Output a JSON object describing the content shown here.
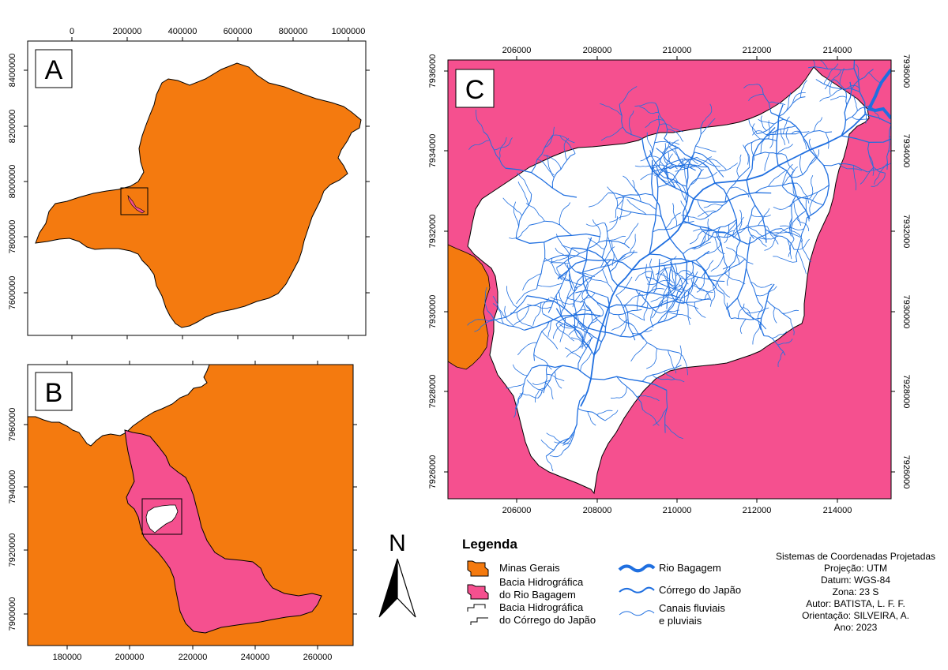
{
  "colors": {
    "minas_gerais": "#F47A0F",
    "bacia_bagagem": "#F5508F",
    "rio": "#1F6FE0",
    "white": "#FFFFFF"
  },
  "panels": {
    "a": {
      "letter": "A",
      "x_ticks": [
        "0",
        "200000",
        "400000",
        "600000",
        "800000",
        "1000000"
      ],
      "y_ticks": [
        "8400000",
        "8200000",
        "8000000",
        "7800000",
        "7600000"
      ]
    },
    "b": {
      "letter": "B",
      "x_ticks": [
        "180000",
        "200000",
        "220000",
        "240000",
        "260000"
      ],
      "y_ticks": [
        "7960000",
        "7940000",
        "7920000",
        "7900000"
      ]
    },
    "c": {
      "letter": "C",
      "x_ticks": [
        "206000",
        "208000",
        "210000",
        "212000",
        "214000"
      ],
      "y_ticks": [
        "7936000",
        "7934000",
        "7932000",
        "7930000",
        "7928000",
        "7926000"
      ]
    }
  },
  "north_arrow": {
    "letter": "N",
    "icon": "north-arrow-icon"
  },
  "legend": {
    "title": "Legenda",
    "items": [
      {
        "symbol": "polygon-swatch",
        "lines": [
          "Minas Gerais"
        ]
      },
      {
        "symbol": "polygon-swatch",
        "lines": [
          "Bacia Hidrográfica",
          "do Rio Bagagem"
        ]
      },
      {
        "symbol": "outline-swatch",
        "lines": [
          "Bacia Hidrográfica",
          "do Córrego do Japão"
        ]
      },
      {
        "symbol": "thick-line-swatch",
        "lines": [
          "Rio Bagagem"
        ]
      },
      {
        "symbol": "medium-line-swatch",
        "lines": [
          "Córrego do Japão"
        ]
      },
      {
        "symbol": "thin-line-swatch",
        "lines": [
          "Canais fluviais",
          "e pluviais"
        ]
      }
    ]
  },
  "info": [
    "Sistemas de Coordenadas Projetadas",
    "Projeção: UTM",
    "Datum: WGS-84",
    "Zona: 23 S",
    "Autor: BATISTA, L. F. F.",
    "Orientação: SILVEIRA, A.",
    "Ano: 2023"
  ]
}
